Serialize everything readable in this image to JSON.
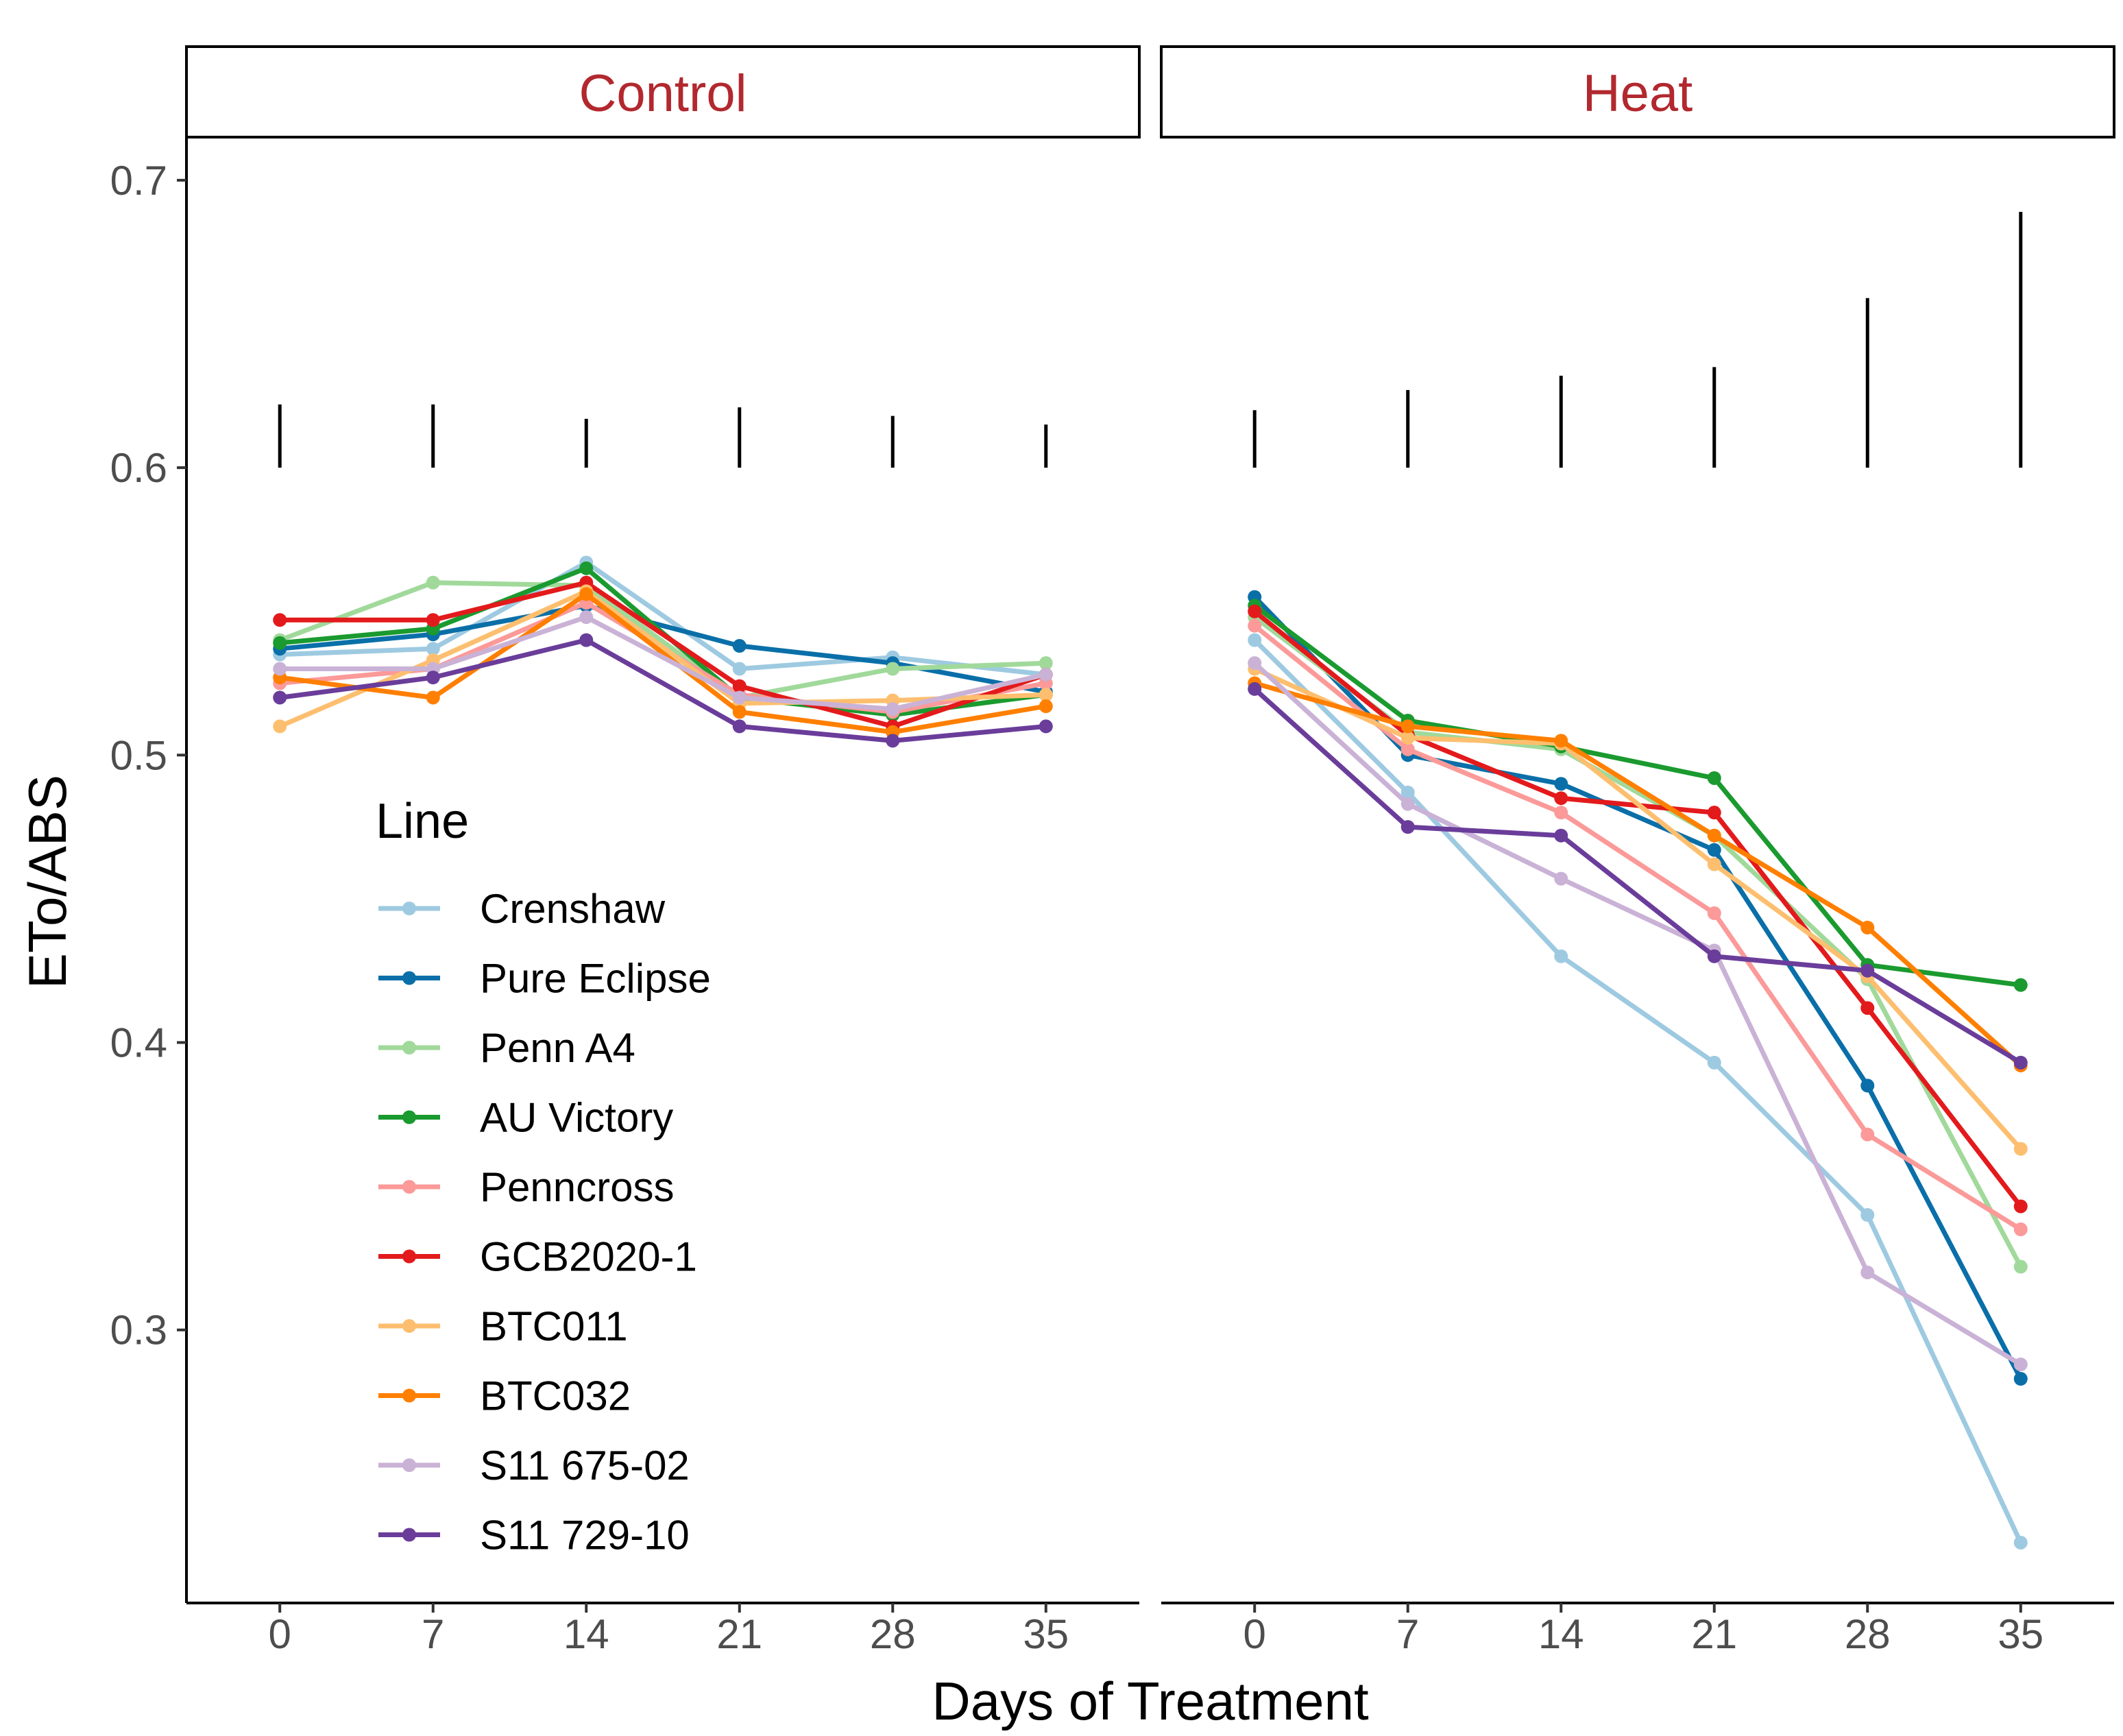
{
  "chart_data": {
    "type": "line",
    "facets": [
      "Control",
      "Heat"
    ],
    "x": [
      0,
      7,
      14,
      21,
      28,
      35
    ],
    "xlabel": "Days of Treatment",
    "ylabel": "ETo/ABS",
    "ylim": [
      0.205,
      0.715
    ],
    "yticks": [
      0.3,
      0.4,
      0.5,
      0.6,
      0.7
    ],
    "ytick_labels": [
      "0.3",
      "0.4",
      "0.5",
      "0.6",
      "0.7"
    ],
    "legend_title": "Line",
    "legend_position": "inside-left",
    "grid": false,
    "error_bars": {
      "base": 0.6,
      "Control": [
        0.622,
        0.622,
        0.617,
        0.621,
        0.618,
        0.615
      ],
      "Heat": [
        0.62,
        0.627,
        0.632,
        0.635,
        0.659,
        0.689
      ]
    },
    "series": [
      {
        "name": "Crenshaw",
        "color": "#9ecae1",
        "Control": [
          0.535,
          0.537,
          0.567,
          0.53,
          0.534,
          0.528
        ],
        "Heat": [
          0.54,
          0.487,
          0.43,
          0.393,
          0.34,
          0.226
        ]
      },
      {
        "name": "Pure Eclipse",
        "color": "#0a6fa8",
        "Control": [
          0.537,
          0.542,
          0.552,
          0.538,
          0.532,
          0.522
        ],
        "Heat": [
          0.555,
          0.5,
          0.49,
          0.467,
          0.385,
          0.283
        ]
      },
      {
        "name": "Penn A4",
        "color": "#a1d99b",
        "Control": [
          0.54,
          0.56,
          0.559,
          0.52,
          0.53,
          0.532
        ],
        "Heat": [
          0.548,
          0.508,
          0.502,
          0.472,
          0.422,
          0.322
        ]
      },
      {
        "name": "AU Victory",
        "color": "#1a9a2f",
        "Control": [
          0.539,
          0.544,
          0.565,
          0.52,
          0.514,
          0.521
        ],
        "Heat": [
          0.552,
          0.512,
          0.503,
          0.492,
          0.427,
          0.42
        ]
      },
      {
        "name": "Penncross",
        "color": "#fb9a99",
        "Control": [
          0.525,
          0.53,
          0.553,
          0.521,
          0.515,
          0.525
        ],
        "Heat": [
          0.545,
          0.502,
          0.48,
          0.445,
          0.368,
          0.335
        ]
      },
      {
        "name": "GCB2020-1",
        "color": "#e31a1c",
        "Control": [
          0.547,
          0.547,
          0.56,
          0.524,
          0.51,
          0.528
        ],
        "Heat": [
          0.55,
          0.507,
          0.485,
          0.48,
          0.412,
          0.343
        ]
      },
      {
        "name": "BTC011",
        "color": "#fdbf6f",
        "Control": [
          0.51,
          0.533,
          0.557,
          0.518,
          0.519,
          0.521
        ],
        "Heat": [
          0.53,
          0.506,
          0.504,
          0.462,
          0.423,
          0.363
        ]
      },
      {
        "name": "BTC032",
        "color": "#ff7f00",
        "Control": [
          0.527,
          0.52,
          0.556,
          0.515,
          0.508,
          0.517
        ],
        "Heat": [
          0.525,
          0.51,
          0.505,
          0.472,
          0.44,
          0.392
        ]
      },
      {
        "name": "S11 675-02",
        "color": "#cab2d6",
        "Control": [
          0.53,
          0.53,
          0.548,
          0.52,
          0.516,
          0.528
        ],
        "Heat": [
          0.532,
          0.483,
          0.457,
          0.432,
          0.32,
          0.288
        ]
      },
      {
        "name": "S11 729-10",
        "color": "#6a3d9a",
        "Control": [
          0.52,
          0.527,
          0.54,
          0.51,
          0.505,
          0.51
        ],
        "Heat": [
          0.523,
          0.475,
          0.472,
          0.43,
          0.425,
          0.393
        ]
      }
    ]
  }
}
